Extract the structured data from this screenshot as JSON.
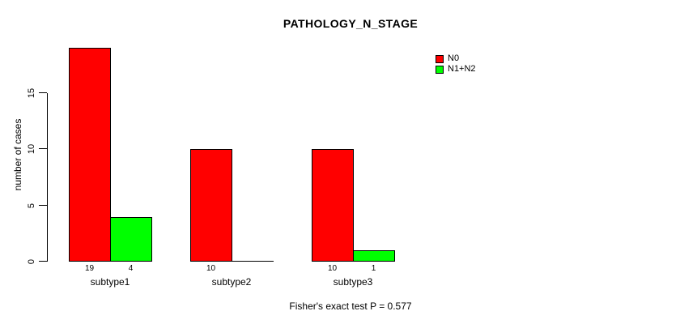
{
  "chart_data": {
    "type": "bar",
    "title": "PATHOLOGY_N_STAGE",
    "ylabel": "number of cases",
    "xlabel": "",
    "categories": [
      "subtype1",
      "subtype2",
      "subtype3"
    ],
    "series": [
      {
        "name": "N0",
        "color": "#ff0000",
        "values": [
          19,
          10,
          10
        ]
      },
      {
        "name": "N1+N2",
        "color": "#00ff00",
        "values": [
          4,
          0,
          1
        ]
      }
    ],
    "bar_value_labels": [
      [
        "19",
        "4"
      ],
      [
        "10",
        ""
      ],
      [
        "10",
        "1"
      ]
    ],
    "yticks": [
      0,
      5,
      10,
      15
    ],
    "ylim": [
      0,
      19
    ],
    "grid": false,
    "legend_position": "top-right",
    "bar_border_color": "#000000",
    "axis_color": "#000000",
    "background": "#ffffff",
    "annotation": "Fisher's exact test P = 0.577"
  }
}
